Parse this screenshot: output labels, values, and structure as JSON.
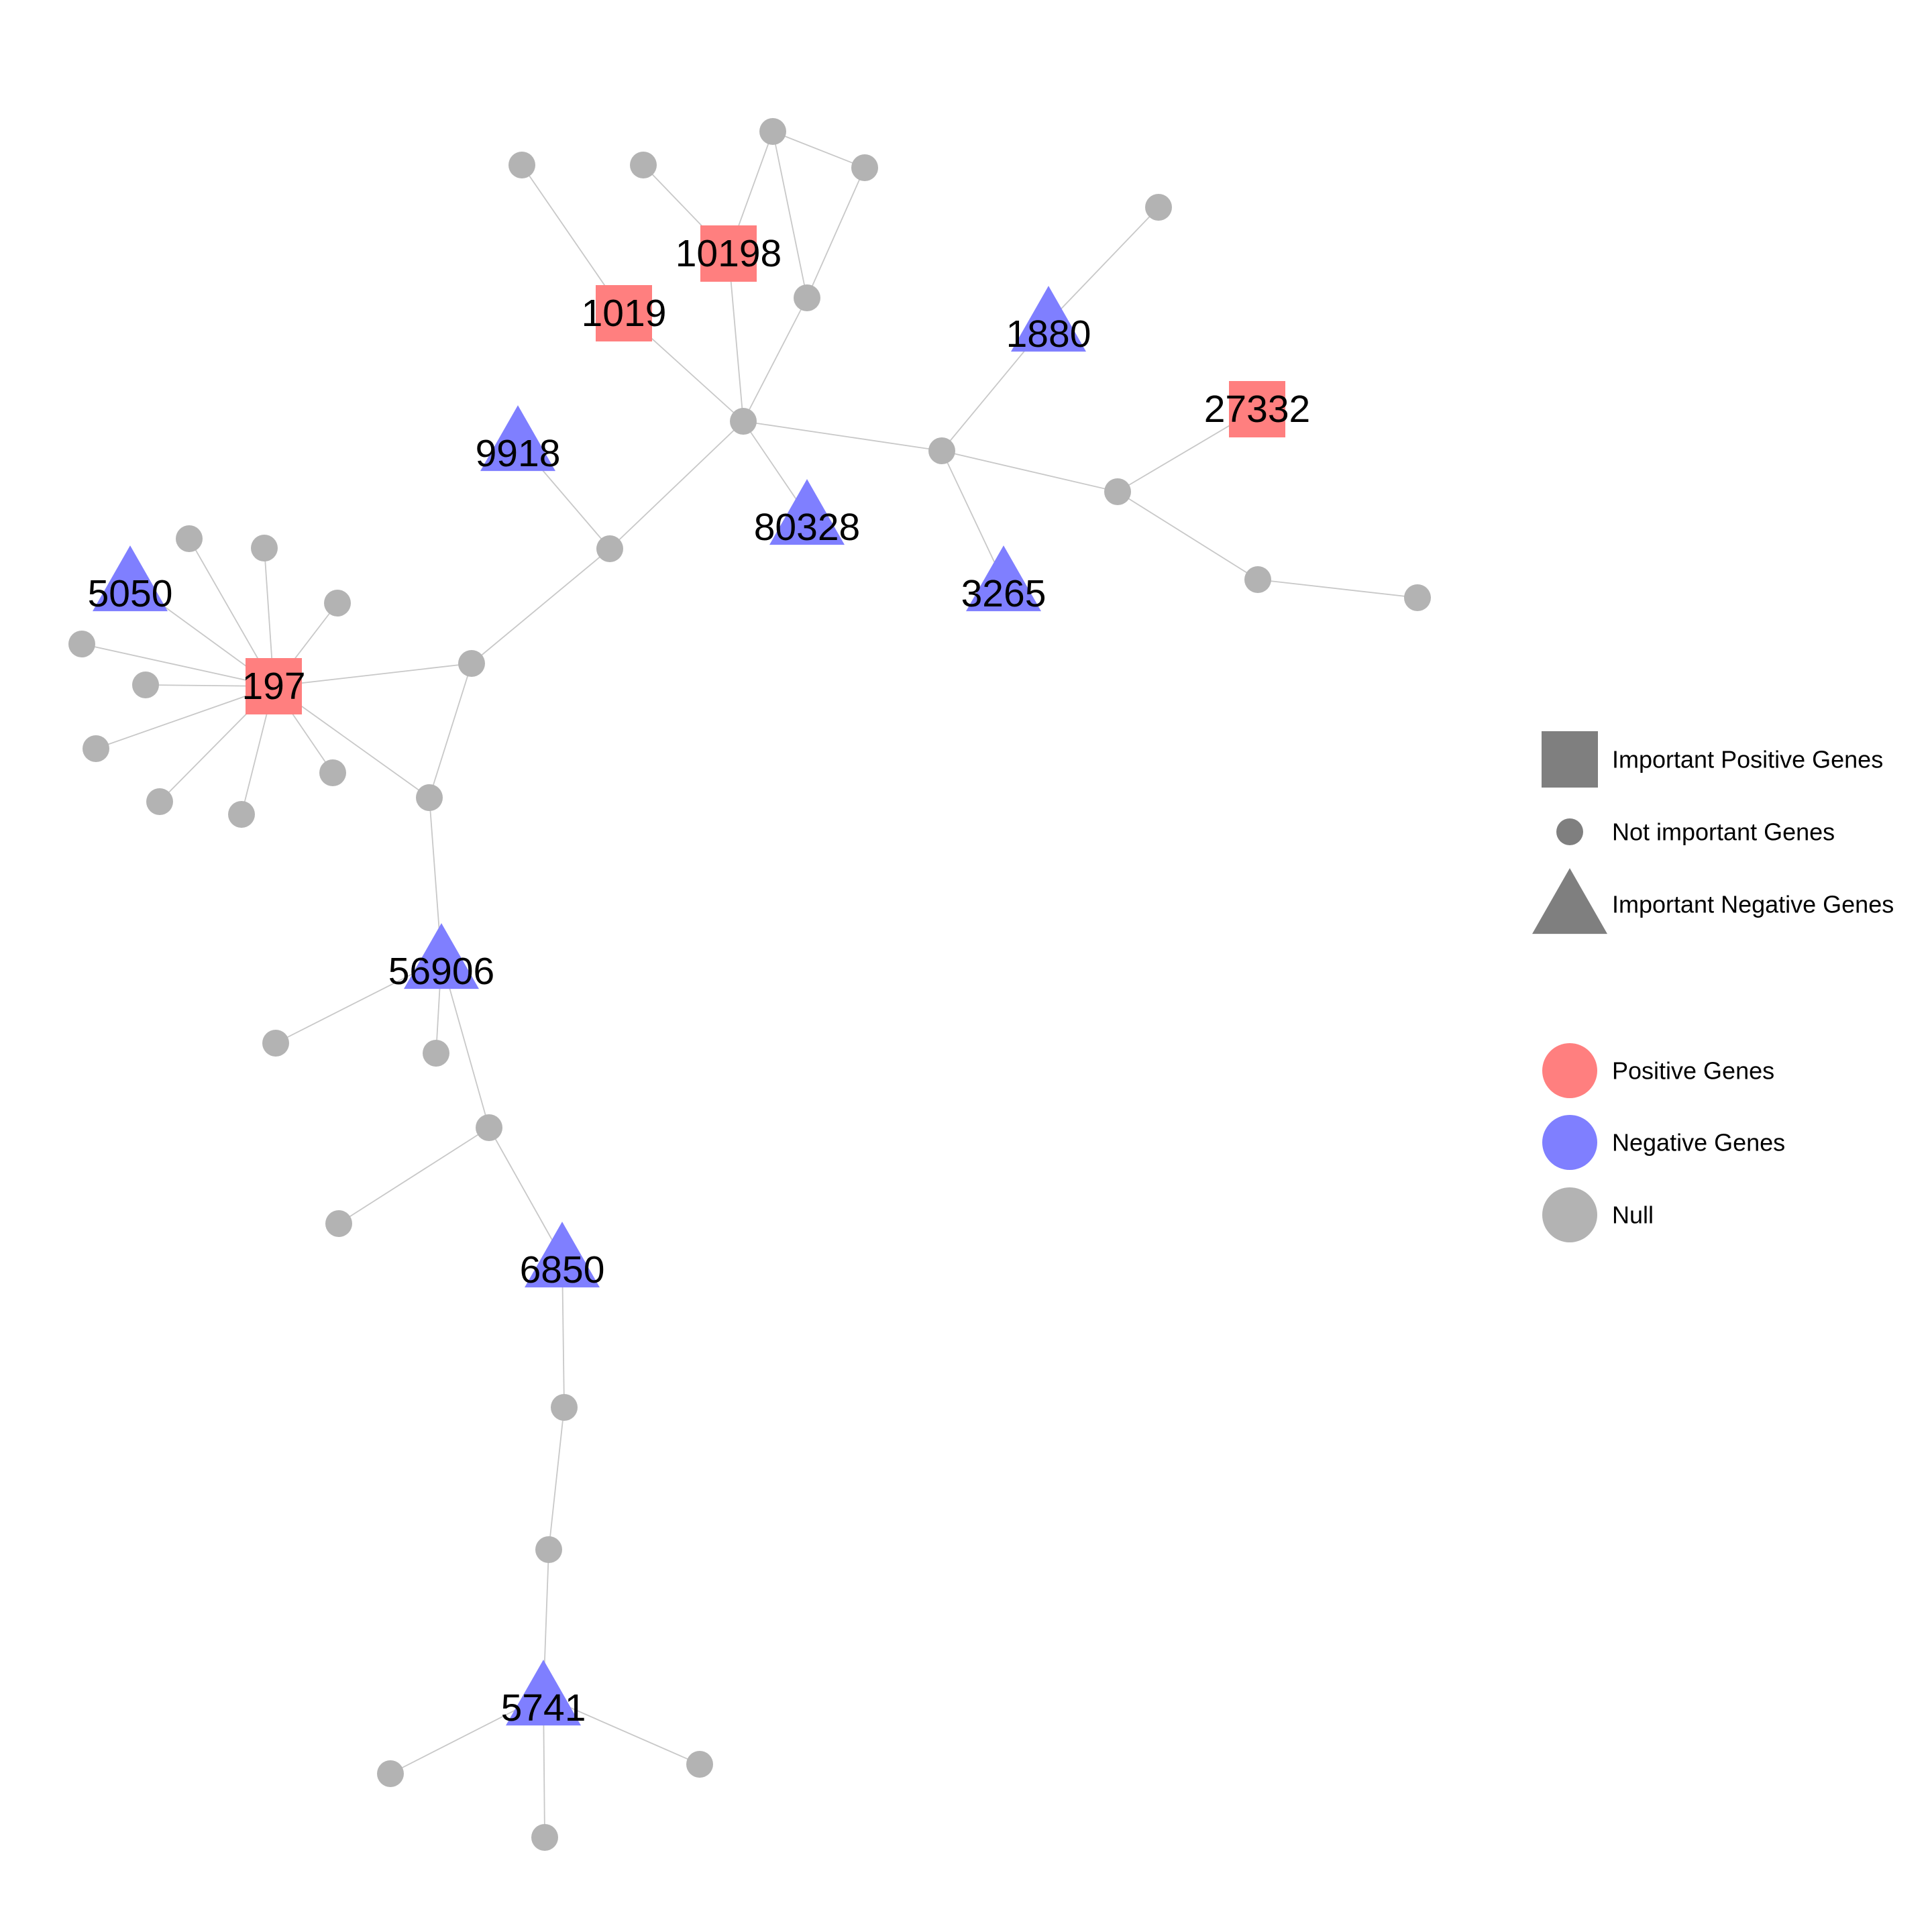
{
  "colors": {
    "positive": "#ff7f7f",
    "negative": "#7f7fff",
    "null": "#b3b3b3",
    "legend_shape": "#7f7f7f",
    "edge": "#c8c8c8"
  },
  "network": {
    "nodes": [
      {
        "id": "10198",
        "label": "10198",
        "shape": "square",
        "group": "positive"
      },
      {
        "id": "1019",
        "label": "1019",
        "shape": "square",
        "group": "positive"
      },
      {
        "id": "27332",
        "label": "27332",
        "shape": "square",
        "group": "positive"
      },
      {
        "id": "197",
        "label": "197",
        "shape": "square",
        "group": "positive"
      },
      {
        "id": "1880",
        "label": "1880",
        "shape": "triangle",
        "group": "negative"
      },
      {
        "id": "9918",
        "label": "9918",
        "shape": "triangle",
        "group": "negative"
      },
      {
        "id": "80328",
        "label": "80328",
        "shape": "triangle",
        "group": "negative"
      },
      {
        "id": "3265",
        "label": "3265",
        "shape": "triangle",
        "group": "negative"
      },
      {
        "id": "5050",
        "label": "5050",
        "shape": "triangle",
        "group": "negative"
      },
      {
        "id": "56906",
        "label": "56906",
        "shape": "triangle",
        "group": "negative"
      },
      {
        "id": "6850",
        "label": "6850",
        "shape": "triangle",
        "group": "negative"
      },
      {
        "id": "5741",
        "label": "5741",
        "shape": "triangle",
        "group": "negative"
      },
      {
        "id": "h1",
        "label": "",
        "shape": "circle",
        "group": "null"
      },
      {
        "id": "j1",
        "label": "",
        "shape": "circle",
        "group": "null"
      },
      {
        "id": "j2",
        "label": "",
        "shape": "circle",
        "group": "null"
      },
      {
        "id": "j3",
        "label": "",
        "shape": "circle",
        "group": "null"
      },
      {
        "id": "j4",
        "label": "",
        "shape": "circle",
        "group": "null"
      },
      {
        "id": "j5",
        "label": "",
        "shape": "circle",
        "group": "null"
      },
      {
        "id": "j6",
        "label": "",
        "shape": "circle",
        "group": "null"
      },
      {
        "id": "j7",
        "label": "",
        "shape": "circle",
        "group": "null"
      },
      {
        "id": "j8",
        "label": "",
        "shape": "circle",
        "group": "null"
      },
      {
        "id": "j9",
        "label": "",
        "shape": "circle",
        "group": "null"
      },
      {
        "id": "j10",
        "label": "",
        "shape": "circle",
        "group": "null"
      },
      {
        "id": "t1",
        "label": "",
        "shape": "circle",
        "group": "null"
      },
      {
        "id": "t2",
        "label": "",
        "shape": "circle",
        "group": "null"
      },
      {
        "id": "t3",
        "label": "",
        "shape": "circle",
        "group": "null"
      },
      {
        "id": "t4",
        "label": "",
        "shape": "circle",
        "group": "null"
      },
      {
        "id": "t5",
        "label": "",
        "shape": "circle",
        "group": "null"
      },
      {
        "id": "t6",
        "label": "",
        "shape": "circle",
        "group": "null"
      },
      {
        "id": "t7",
        "label": "",
        "shape": "circle",
        "group": "null"
      },
      {
        "id": "t8",
        "label": "",
        "shape": "circle",
        "group": "null"
      },
      {
        "id": "l1",
        "label": "",
        "shape": "circle",
        "group": "null"
      },
      {
        "id": "l2",
        "label": "",
        "shape": "circle",
        "group": "null"
      },
      {
        "id": "l3",
        "label": "",
        "shape": "circle",
        "group": "null"
      },
      {
        "id": "l4",
        "label": "",
        "shape": "circle",
        "group": "null"
      },
      {
        "id": "l5",
        "label": "",
        "shape": "circle",
        "group": "null"
      },
      {
        "id": "l6",
        "label": "",
        "shape": "circle",
        "group": "null"
      },
      {
        "id": "l7",
        "label": "",
        "shape": "circle",
        "group": "null"
      },
      {
        "id": "l8",
        "label": "",
        "shape": "circle",
        "group": "null"
      },
      {
        "id": "l9",
        "label": "",
        "shape": "circle",
        "group": "null"
      },
      {
        "id": "l10",
        "label": "",
        "shape": "circle",
        "group": "null"
      },
      {
        "id": "b1",
        "label": "",
        "shape": "circle",
        "group": "null"
      },
      {
        "id": "b2",
        "label": "",
        "shape": "circle",
        "group": "null"
      },
      {
        "id": "b3",
        "label": "",
        "shape": "circle",
        "group": "null"
      },
      {
        "id": "b4",
        "label": "",
        "shape": "circle",
        "group": "null"
      },
      {
        "id": "b5",
        "label": "",
        "shape": "circle",
        "group": "null"
      },
      {
        "id": "b6",
        "label": "",
        "shape": "circle",
        "group": "null"
      },
      {
        "id": "b7",
        "label": "",
        "shape": "circle",
        "group": "null"
      },
      {
        "id": "b8",
        "label": "",
        "shape": "circle",
        "group": "null"
      }
    ],
    "edges": [
      [
        "h1",
        "1019"
      ],
      [
        "h1",
        "10198"
      ],
      [
        "h1",
        "j3"
      ],
      [
        "h1",
        "80328"
      ],
      [
        "h1",
        "j4"
      ],
      [
        "h1",
        "j8"
      ],
      [
        "1019",
        "j2"
      ],
      [
        "10198",
        "j1"
      ],
      [
        "10198",
        "t1"
      ],
      [
        "j3",
        "t1"
      ],
      [
        "j3",
        "t2"
      ],
      [
        "t2",
        "t1"
      ],
      [
        "j4",
        "1880"
      ],
      [
        "j4",
        "3265"
      ],
      [
        "j4",
        "j5"
      ],
      [
        "1880",
        "t3"
      ],
      [
        "j5",
        "27332"
      ],
      [
        "j5",
        "j6"
      ],
      [
        "j6",
        "j7"
      ],
      [
        "j8",
        "9918"
      ],
      [
        "j8",
        "j9"
      ],
      [
        "j9",
        "197"
      ],
      [
        "j9",
        "j10"
      ],
      [
        "j10",
        "197"
      ],
      [
        "j10",
        "56906"
      ],
      [
        "197",
        "5050"
      ],
      [
        "197",
        "t4"
      ],
      [
        "197",
        "t5"
      ],
      [
        "197",
        "t6"
      ],
      [
        "197",
        "l1"
      ],
      [
        "197",
        "l2"
      ],
      [
        "197",
        "l3"
      ],
      [
        "197",
        "l4"
      ],
      [
        "197",
        "l5"
      ],
      [
        "197",
        "l6"
      ],
      [
        "56906",
        "b1"
      ],
      [
        "56906",
        "b2"
      ],
      [
        "56906",
        "b3"
      ],
      [
        "b3",
        "b4"
      ],
      [
        "b3",
        "6850"
      ],
      [
        "6850",
        "b5"
      ],
      [
        "b5",
        "b6"
      ],
      [
        "b6",
        "5741"
      ],
      [
        "5741",
        "b7"
      ],
      [
        "5741",
        "b8"
      ],
      [
        "5741",
        "l7"
      ]
    ]
  },
  "legend": {
    "shape_items": [
      {
        "symbol": "square",
        "label": "Important Positive Genes"
      },
      {
        "symbol": "circle",
        "label": "Not important Genes"
      },
      {
        "symbol": "triangle",
        "label": "Important Negative Genes"
      }
    ],
    "color_items": [
      {
        "group": "positive",
        "label": "Positive Genes"
      },
      {
        "group": "negative",
        "label": "Negative Genes"
      },
      {
        "group": "null",
        "label": "Null"
      }
    ]
  }
}
